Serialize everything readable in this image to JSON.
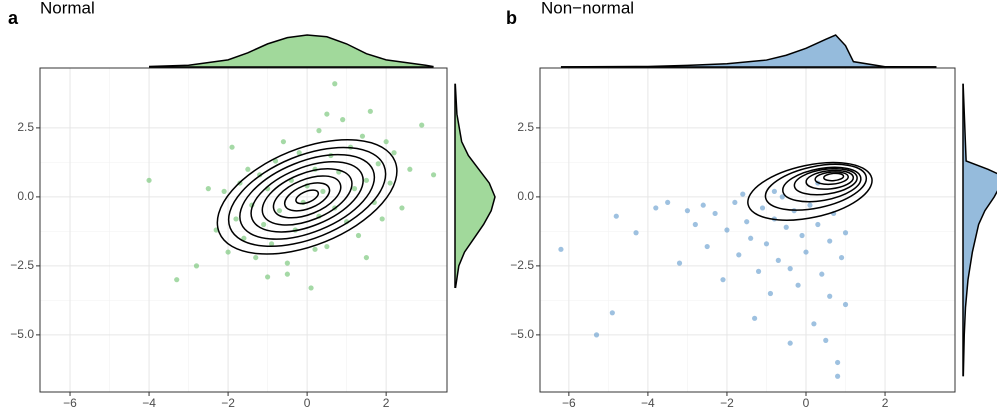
{
  "chart_data": [
    {
      "type": "scatter",
      "panel": "a",
      "title": "Normal",
      "color": "#74c476",
      "density_color": "#a1d99b",
      "grid": true,
      "xlim": [
        -6.76,
        3.54
      ],
      "ylim": [
        -7.07,
        4.67
      ],
      "xticks": [
        {
          "value": -6,
          "label": "−6"
        },
        {
          "value": -4,
          "label": "−4"
        },
        {
          "value": -2,
          "label": "−2"
        },
        0,
        2
      ],
      "yticks": [
        {
          "value": 2.5,
          "label": "2.5"
        },
        {
          "value": 0,
          "label": "0.0"
        },
        {
          "value": -2.5,
          "label": "−2.5"
        },
        {
          "value": -5,
          "label": "−5.0"
        }
      ],
      "x": [
        -4.0,
        -3.3,
        -2.8,
        -2.5,
        -2.3,
        -2.1,
        -2.0,
        -1.8,
        -1.7,
        -1.6,
        -1.5,
        -1.4,
        -1.3,
        -1.2,
        -1.1,
        -1.0,
        -0.9,
        -0.8,
        -0.7,
        -0.6,
        -0.5,
        -0.4,
        -0.3,
        -0.2,
        -0.1,
        0.0,
        0.1,
        0.2,
        0.3,
        0.3,
        0.4,
        0.5,
        0.6,
        0.7,
        0.7,
        0.8,
        0.9,
        1.0,
        1.1,
        1.2,
        1.3,
        1.4,
        1.5,
        1.6,
        1.7,
        1.8,
        1.9,
        2.0,
        2.1,
        2.2,
        2.4,
        2.6,
        2.9,
        3.2,
        -1.9,
        -0.5,
        0.5,
        1.5,
        -1.0,
        0.2
      ],
      "values": [
        0.6,
        -3.0,
        -2.5,
        0.3,
        -1.2,
        0.2,
        -2.0,
        -0.8,
        0.5,
        -1.5,
        1.0,
        -0.3,
        -2.2,
        0.8,
        -1.0,
        0.3,
        -1.7,
        1.3,
        -0.5,
        2.0,
        -2.4,
        0.6,
        -1.2,
        1.6,
        -0.2,
        0.4,
        -3.3,
        1.0,
        -0.7,
        2.4,
        0.2,
        -1.8,
        1.5,
        4.1,
        -0.4,
        0.9,
        2.8,
        -0.9,
        1.8,
        0.3,
        -1.4,
        2.2,
        0.6,
        3.1,
        -0.2,
        1.2,
        -0.8,
        2.0,
        0.5,
        1.6,
        -0.4,
        1.0,
        2.6,
        0.8,
        1.8,
        -2.8,
        3.0,
        -2.2,
        -2.9,
        -1.9
      ],
      "x_density": {
        "x": [
          -4,
          -3,
          -2,
          -1.5,
          -1,
          -0.5,
          0,
          0.5,
          1,
          1.5,
          2,
          3,
          3.2
        ],
        "values": [
          0.005,
          0.02,
          0.08,
          0.16,
          0.26,
          0.33,
          0.36,
          0.34,
          0.26,
          0.15,
          0.08,
          0.02,
          0.005
        ]
      },
      "y_density": {
        "y": [
          -3.3,
          -2.5,
          -2,
          -1.5,
          -1,
          -0.5,
          0,
          0.5,
          1,
          1.5,
          2,
          3,
          4.1
        ],
        "values": [
          0.005,
          0.04,
          0.1,
          0.2,
          0.3,
          0.38,
          0.42,
          0.36,
          0.25,
          0.14,
          0.07,
          0.02,
          0.003
        ]
      },
      "contours": [
        {
          "cx": 0,
          "cy": 0,
          "rx": 2.4,
          "ry": 1.75,
          "angle": -22
        },
        {
          "cx": 0,
          "cy": 0,
          "rx": 2.1,
          "ry": 1.5,
          "angle": -22
        },
        {
          "cx": 0,
          "cy": 0,
          "rx": 1.8,
          "ry": 1.28,
          "angle": -22
        },
        {
          "cx": 0,
          "cy": 0,
          "rx": 1.5,
          "ry": 1.06,
          "angle": -22
        },
        {
          "cx": 0,
          "cy": 0,
          "rx": 1.2,
          "ry": 0.85,
          "angle": -22
        },
        {
          "cx": 0,
          "cy": 0,
          "rx": 0.9,
          "ry": 0.63,
          "angle": -22
        },
        {
          "cx": 0,
          "cy": 0,
          "rx": 0.6,
          "ry": 0.42,
          "angle": -22
        },
        {
          "cx": 0,
          "cy": 0,
          "rx": 0.3,
          "ry": 0.2,
          "angle": -22
        }
      ]
    },
    {
      "type": "scatter",
      "panel": "b",
      "title": "Non−normal",
      "color": "#6a9fcf",
      "density_color": "#95bbdc",
      "grid": true,
      "xlim": [
        -6.73,
        3.77
      ],
      "ylim": [
        -7.07,
        4.67
      ],
      "xticks": [
        {
          "value": -6,
          "label": "−6"
        },
        {
          "value": -4,
          "label": "−4"
        },
        {
          "value": -2,
          "label": "−2"
        },
        0,
        2
      ],
      "yticks": [
        {
          "value": 2.5,
          "label": "2.5"
        },
        {
          "value": 0,
          "label": "0.0"
        },
        {
          "value": -2.5,
          "label": "−2.5"
        },
        {
          "value": -5,
          "label": "−5.0"
        }
      ],
      "x": [
        -6.2,
        -5.3,
        -4.9,
        -4.8,
        -4.3,
        -3.8,
        -3.5,
        -3.2,
        -3.0,
        -2.8,
        -2.6,
        -2.5,
        -2.3,
        -2.1,
        -2.0,
        -1.8,
        -1.7,
        -1.5,
        -1.4,
        -1.3,
        -1.2,
        -1.1,
        -1.0,
        -0.9,
        -0.8,
        -0.7,
        -0.6,
        -0.5,
        -0.4,
        -0.4,
        -0.3,
        -0.2,
        -0.1,
        0.0,
        0.1,
        0.2,
        0.3,
        0.4,
        0.5,
        0.6,
        0.6,
        0.7,
        0.8,
        0.8,
        0.9,
        1.0,
        1.0,
        -1.6,
        -0.8,
        0.3
      ],
      "values": [
        -1.9,
        -5.0,
        -4.2,
        -0.7,
        -1.3,
        -0.4,
        -0.2,
        -2.4,
        -0.5,
        -1.0,
        -0.3,
        -1.8,
        -0.6,
        -3.0,
        -1.2,
        -0.2,
        -2.1,
        -0.9,
        -1.5,
        -4.4,
        -2.7,
        -0.4,
        -1.7,
        -3.5,
        -0.8,
        -2.3,
        0.0,
        -1.1,
        -5.3,
        -2.6,
        -0.5,
        -3.2,
        -1.4,
        -2.0,
        -0.3,
        -4.6,
        -1.0,
        -2.8,
        -5.2,
        -1.6,
        -3.6,
        -0.6,
        -6.5,
        -6.0,
        -2.2,
        -3.9,
        -1.3,
        0.1,
        0.2,
        0.5
      ],
      "x_density": {
        "x": [
          -6.2,
          -4,
          -3,
          -2,
          -1,
          -0.5,
          0,
          0.5,
          0.75,
          1,
          1.2,
          2,
          3.3
        ],
        "values": [
          0.003,
          0.01,
          0.03,
          0.06,
          0.13,
          0.22,
          0.35,
          0.52,
          0.6,
          0.4,
          0.1,
          0.005,
          0.002
        ]
      },
      "y_density": {
        "y": [
          -6.5,
          -5,
          -4,
          -3,
          -2,
          -1,
          -0.5,
          0,
          0.5,
          0.75,
          1,
          1.3,
          4.1
        ],
        "values": [
          0.005,
          0.02,
          0.04,
          0.08,
          0.15,
          0.25,
          0.35,
          0.5,
          0.62,
          0.64,
          0.4,
          0.05,
          0.002
        ]
      },
      "contours": [
        {
          "cx": 0.1,
          "cy": 0.2,
          "rx": 1.6,
          "ry": 0.95,
          "angle": -12
        },
        {
          "cx": 0.25,
          "cy": 0.35,
          "rx": 1.3,
          "ry": 0.75,
          "angle": -12
        },
        {
          "cx": 0.4,
          "cy": 0.45,
          "rx": 1.0,
          "ry": 0.58,
          "angle": -10
        },
        {
          "cx": 0.5,
          "cy": 0.55,
          "rx": 0.8,
          "ry": 0.45,
          "angle": -8
        },
        {
          "cx": 0.6,
          "cy": 0.62,
          "rx": 0.6,
          "ry": 0.33,
          "angle": -6
        },
        {
          "cx": 0.65,
          "cy": 0.68,
          "rx": 0.42,
          "ry": 0.22,
          "angle": -5
        },
        {
          "cx": 0.7,
          "cy": 0.72,
          "rx": 0.25,
          "ry": 0.13,
          "angle": -5
        }
      ]
    }
  ]
}
